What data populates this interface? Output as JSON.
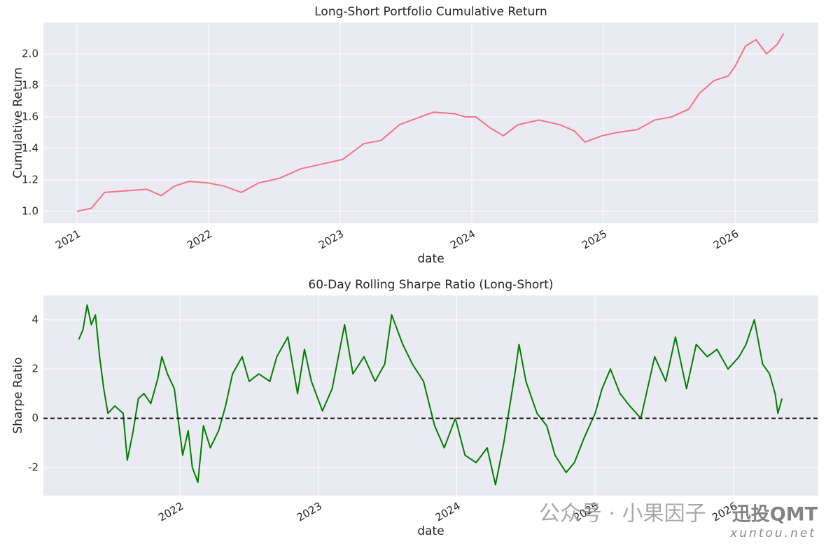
{
  "chart_data": [
    {
      "type": "line",
      "title": "Long-Short Portfolio Cumulative Return",
      "xlabel": "date",
      "ylabel": "Cumulative Return",
      "x": [
        2021.0,
        2021.11,
        2021.21,
        2021.37,
        2021.53,
        2021.64,
        2021.74,
        2021.85,
        2022.0,
        2022.12,
        2022.25,
        2022.38,
        2022.54,
        2022.7,
        2022.86,
        2023.02,
        2023.18,
        2023.31,
        2023.45,
        2023.61,
        2023.71,
        2023.87,
        2023.95,
        2024.03,
        2024.14,
        2024.24,
        2024.35,
        2024.51,
        2024.67,
        2024.78,
        2024.86,
        2024.99,
        2025.1,
        2025.26,
        2025.39,
        2025.52,
        2025.65,
        2025.73,
        2025.84,
        2025.95,
        2026.0,
        2026.08,
        2026.16,
        2026.24,
        2026.32,
        2026.37
      ],
      "series": [
        {
          "name": "Cumulative Return",
          "color": "#f77189",
          "values": [
            1.0,
            1.02,
            1.12,
            1.13,
            1.14,
            1.1,
            1.16,
            1.19,
            1.18,
            1.16,
            1.12,
            1.18,
            1.21,
            1.27,
            1.3,
            1.33,
            1.43,
            1.45,
            1.55,
            1.6,
            1.63,
            1.62,
            1.6,
            1.6,
            1.53,
            1.48,
            1.55,
            1.58,
            1.55,
            1.51,
            1.44,
            1.48,
            1.5,
            1.52,
            1.58,
            1.6,
            1.65,
            1.75,
            1.83,
            1.86,
            1.92,
            2.05,
            2.09,
            2.0,
            2.06,
            2.13
          ]
        }
      ],
      "xlim": [
        2020.745,
        2026.633
      ],
      "xticks": [
        2021,
        2022,
        2023,
        2024,
        2025,
        2026
      ],
      "ylim": [
        0.924,
        2.2
      ],
      "yticks": [
        {
          "value": 1.0,
          "label": "1.0"
        },
        {
          "value": 1.2,
          "label": "1.2"
        },
        {
          "value": 1.4,
          "label": "1.4"
        },
        {
          "value": 1.6,
          "label": "1.6"
        },
        {
          "value": 1.8,
          "label": "1.8"
        },
        {
          "value": 2.0,
          "label": "2.0"
        }
      ],
      "grid": true
    },
    {
      "type": "line",
      "title": "60-Day Rolling Sharpe Ratio (Long-Short)",
      "xlabel": "date",
      "ylabel": "Sharpe Ratio",
      "x": [
        2021.27,
        2021.3,
        2021.33,
        2021.36,
        2021.39,
        2021.42,
        2021.45,
        2021.48,
        2021.53,
        2021.59,
        2021.62,
        2021.66,
        2021.7,
        2021.74,
        2021.79,
        2021.84,
        2021.87,
        2021.91,
        2021.96,
        2022.02,
        2022.06,
        2022.09,
        2022.13,
        2022.17,
        2022.22,
        2022.28,
        2022.33,
        2022.38,
        2022.45,
        2022.5,
        2022.57,
        2022.65,
        2022.7,
        2022.78,
        2022.85,
        2022.9,
        2022.95,
        2023.03,
        2023.1,
        2023.19,
        2023.25,
        2023.33,
        2023.41,
        2023.48,
        2023.53,
        2023.61,
        2023.68,
        2023.76,
        2023.84,
        2023.91,
        2023.99,
        2024.06,
        2024.14,
        2024.22,
        2024.28,
        2024.34,
        2024.42,
        2024.45,
        2024.5,
        2024.58,
        2024.65,
        2024.71,
        2024.79,
        2024.85,
        2024.92,
        2025.0,
        2025.05,
        2025.11,
        2025.18,
        2025.25,
        2025.33,
        2025.43,
        2025.51,
        2025.58,
        2025.66,
        2025.73,
        2025.81,
        2025.88,
        2025.96,
        2026.04,
        2026.09,
        2026.15,
        2026.21,
        2026.26,
        2026.3,
        2026.32,
        2026.35
      ],
      "series": [
        {
          "name": "Sharpe Ratio",
          "color": "#008000",
          "values": [
            3.2,
            3.6,
            4.6,
            3.8,
            4.2,
            2.5,
            1.2,
            0.2,
            0.5,
            0.2,
            -1.7,
            -0.6,
            0.8,
            1.0,
            0.6,
            1.6,
            2.5,
            1.8,
            1.2,
            -1.5,
            -0.5,
            -2.0,
            -2.6,
            -0.3,
            -1.2,
            -0.5,
            0.5,
            1.8,
            2.5,
            1.5,
            1.8,
            1.5,
            2.5,
            3.3,
            1.0,
            2.8,
            1.5,
            0.3,
            1.2,
            3.8,
            1.8,
            2.5,
            1.5,
            2.2,
            4.2,
            3.0,
            2.2,
            1.5,
            -0.3,
            -1.2,
            0.0,
            -1.5,
            -1.8,
            -1.2,
            -2.7,
            -1.0,
            1.8,
            3.0,
            1.5,
            0.2,
            -0.3,
            -1.5,
            -2.2,
            -1.8,
            -0.8,
            0.2,
            1.2,
            2.0,
            1.0,
            0.5,
            0.0,
            2.5,
            1.5,
            3.3,
            1.2,
            3.0,
            2.5,
            2.8,
            2.0,
            2.5,
            3.0,
            4.0,
            2.2,
            1.8,
            1.0,
            0.2,
            0.8
          ]
        }
      ],
      "hline": 0,
      "xlim": [
        2021.014,
        2026.612
      ],
      "xticks": [
        2022,
        2023,
        2024,
        2025,
        2026
      ],
      "ylim": [
        -3.14,
        4.99
      ],
      "yticks": [
        -2,
        0,
        2,
        4
      ],
      "grid": true
    }
  ],
  "watermark": {
    "text": "公众号 · 小果因子",
    "brand": "迅投QMT",
    "site": "xuntou.net"
  }
}
